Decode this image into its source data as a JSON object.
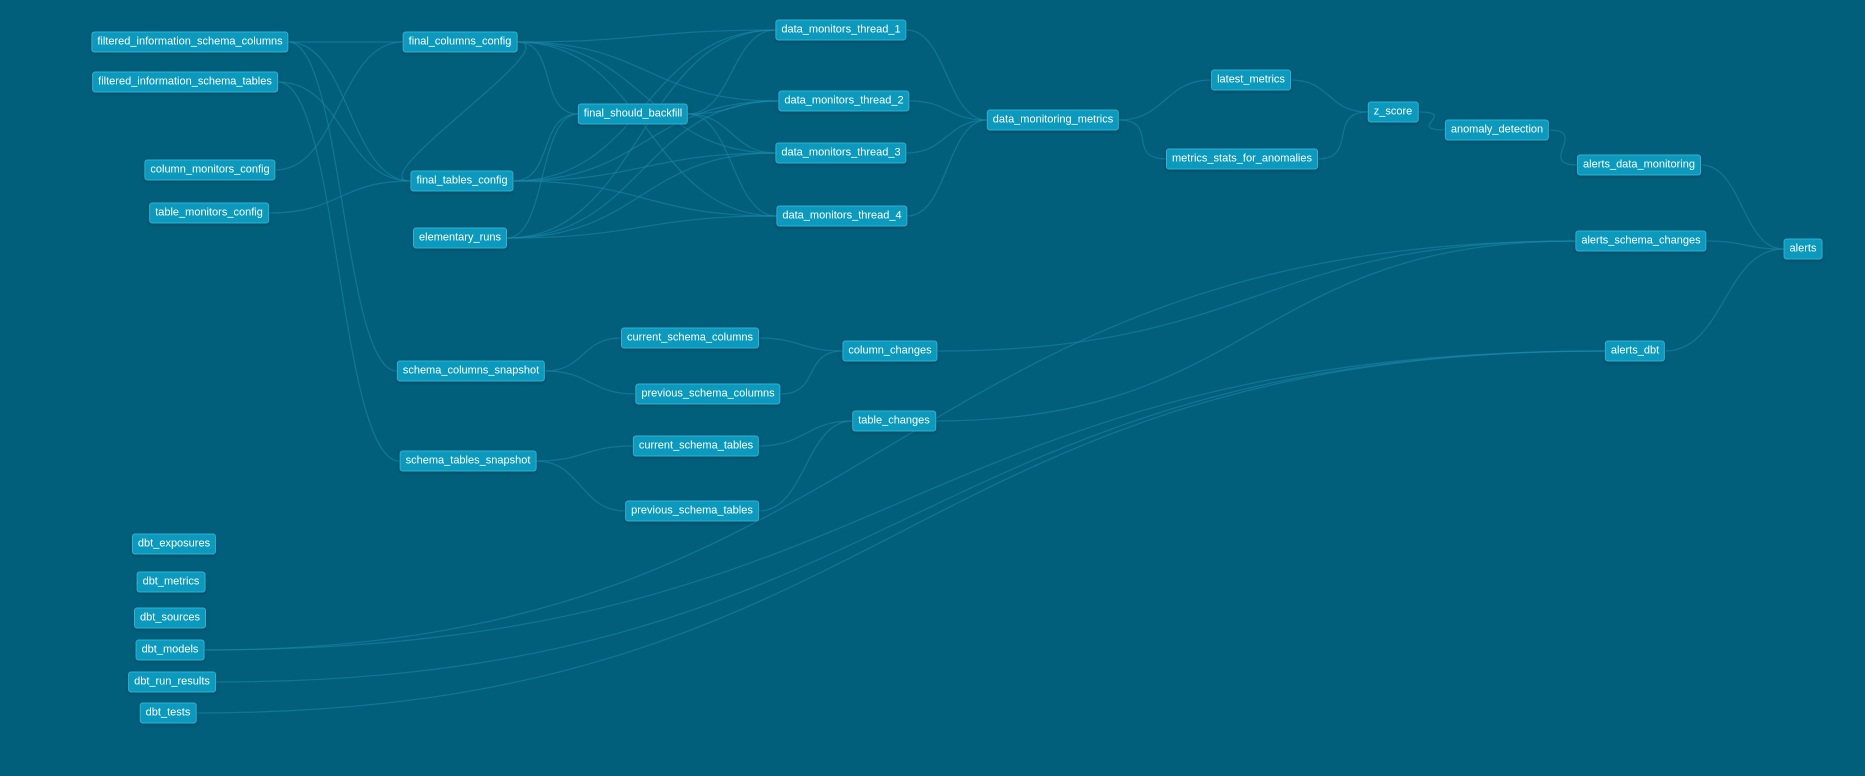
{
  "graph": {
    "nodes": [
      {
        "id": "filtered_information_schema_columns",
        "label": "filtered_information_schema_columns"
      },
      {
        "id": "filtered_information_schema_tables",
        "label": "filtered_information_schema_tables"
      },
      {
        "id": "column_monitors_config",
        "label": "column_monitors_config"
      },
      {
        "id": "table_monitors_config",
        "label": "table_monitors_config"
      },
      {
        "id": "final_columns_config",
        "label": "final_columns_config"
      },
      {
        "id": "final_tables_config",
        "label": "final_tables_config"
      },
      {
        "id": "elementary_runs",
        "label": "elementary_runs"
      },
      {
        "id": "final_should_backfill",
        "label": "final_should_backfill"
      },
      {
        "id": "data_monitors_thread_1",
        "label": "data_monitors_thread_1"
      },
      {
        "id": "data_monitors_thread_2",
        "label": "data_monitors_thread_2"
      },
      {
        "id": "data_monitors_thread_3",
        "label": "data_monitors_thread_3"
      },
      {
        "id": "data_monitors_thread_4",
        "label": "data_monitors_thread_4"
      },
      {
        "id": "data_monitoring_metrics",
        "label": "data_monitoring_metrics"
      },
      {
        "id": "latest_metrics",
        "label": "latest_metrics"
      },
      {
        "id": "metrics_stats_for_anomalies",
        "label": "metrics_stats_for_anomalies"
      },
      {
        "id": "z_score",
        "label": "z_score"
      },
      {
        "id": "anomaly_detection",
        "label": "anomaly_detection"
      },
      {
        "id": "alerts_data_monitoring",
        "label": "alerts_data_monitoring"
      },
      {
        "id": "alerts_schema_changes",
        "label": "alerts_schema_changes"
      },
      {
        "id": "alerts_dbt",
        "label": "alerts_dbt"
      },
      {
        "id": "alerts",
        "label": "alerts"
      },
      {
        "id": "schema_columns_snapshot",
        "label": "schema_columns_snapshot"
      },
      {
        "id": "schema_tables_snapshot",
        "label": "schema_tables_snapshot"
      },
      {
        "id": "current_schema_columns",
        "label": "current_schema_columns"
      },
      {
        "id": "previous_schema_columns",
        "label": "previous_schema_columns"
      },
      {
        "id": "current_schema_tables",
        "label": "current_schema_tables"
      },
      {
        "id": "previous_schema_tables",
        "label": "previous_schema_tables"
      },
      {
        "id": "column_changes",
        "label": "column_changes"
      },
      {
        "id": "table_changes",
        "label": "table_changes"
      },
      {
        "id": "dbt_exposures",
        "label": "dbt_exposures"
      },
      {
        "id": "dbt_metrics",
        "label": "dbt_metrics"
      },
      {
        "id": "dbt_sources",
        "label": "dbt_sources"
      },
      {
        "id": "dbt_models",
        "label": "dbt_models"
      },
      {
        "id": "dbt_run_results",
        "label": "dbt_run_results"
      },
      {
        "id": "dbt_tests",
        "label": "dbt_tests"
      }
    ],
    "edges": [
      [
        "filtered_information_schema_columns",
        "final_columns_config"
      ],
      [
        "filtered_information_schema_columns",
        "final_tables_config"
      ],
      [
        "filtered_information_schema_columns",
        "schema_columns_snapshot"
      ],
      [
        "filtered_information_schema_tables",
        "final_tables_config"
      ],
      [
        "filtered_information_schema_tables",
        "schema_tables_snapshot"
      ],
      [
        "column_monitors_config",
        "final_columns_config"
      ],
      [
        "table_monitors_config",
        "final_tables_config"
      ],
      [
        "final_columns_config",
        "final_should_backfill"
      ],
      [
        "final_columns_config",
        "data_monitors_thread_1"
      ],
      [
        "final_columns_config",
        "data_monitors_thread_2"
      ],
      [
        "final_columns_config",
        "data_monitors_thread_3"
      ],
      [
        "final_columns_config",
        "data_monitors_thread_4"
      ],
      [
        "final_columns_config",
        "final_tables_config"
      ],
      [
        "final_tables_config",
        "final_should_backfill"
      ],
      [
        "final_tables_config",
        "data_monitors_thread_1"
      ],
      [
        "final_tables_config",
        "data_monitors_thread_2"
      ],
      [
        "final_tables_config",
        "data_monitors_thread_3"
      ],
      [
        "final_tables_config",
        "data_monitors_thread_4"
      ],
      [
        "elementary_runs",
        "final_should_backfill"
      ],
      [
        "elementary_runs",
        "data_monitors_thread_1"
      ],
      [
        "elementary_runs",
        "data_monitors_thread_2"
      ],
      [
        "elementary_runs",
        "data_monitors_thread_3"
      ],
      [
        "elementary_runs",
        "data_monitors_thread_4"
      ],
      [
        "final_should_backfill",
        "data_monitors_thread_1"
      ],
      [
        "final_should_backfill",
        "data_monitors_thread_2"
      ],
      [
        "final_should_backfill",
        "data_monitors_thread_3"
      ],
      [
        "final_should_backfill",
        "data_monitors_thread_4"
      ],
      [
        "data_monitors_thread_1",
        "data_monitoring_metrics"
      ],
      [
        "data_monitors_thread_2",
        "data_monitoring_metrics"
      ],
      [
        "data_monitors_thread_3",
        "data_monitoring_metrics"
      ],
      [
        "data_monitors_thread_4",
        "data_monitoring_metrics"
      ],
      [
        "data_monitoring_metrics",
        "latest_metrics"
      ],
      [
        "data_monitoring_metrics",
        "metrics_stats_for_anomalies"
      ],
      [
        "latest_metrics",
        "z_score"
      ],
      [
        "metrics_stats_for_anomalies",
        "z_score"
      ],
      [
        "z_score",
        "anomaly_detection"
      ],
      [
        "anomaly_detection",
        "alerts_data_monitoring"
      ],
      [
        "alerts_data_monitoring",
        "alerts"
      ],
      [
        "alerts_schema_changes",
        "alerts"
      ],
      [
        "alerts_dbt",
        "alerts"
      ],
      [
        "schema_columns_snapshot",
        "current_schema_columns"
      ],
      [
        "schema_columns_snapshot",
        "previous_schema_columns"
      ],
      [
        "schema_tables_snapshot",
        "current_schema_tables"
      ],
      [
        "schema_tables_snapshot",
        "previous_schema_tables"
      ],
      [
        "current_schema_columns",
        "column_changes"
      ],
      [
        "previous_schema_columns",
        "column_changes"
      ],
      [
        "current_schema_tables",
        "table_changes"
      ],
      [
        "previous_schema_tables",
        "table_changes"
      ],
      [
        "column_changes",
        "alerts_schema_changes"
      ],
      [
        "table_changes",
        "alerts_schema_changes"
      ],
      [
        "dbt_models",
        "alerts_schema_changes"
      ],
      [
        "dbt_models",
        "alerts_dbt"
      ],
      [
        "dbt_run_results",
        "alerts_dbt"
      ],
      [
        "dbt_tests",
        "alerts_dbt"
      ]
    ]
  }
}
